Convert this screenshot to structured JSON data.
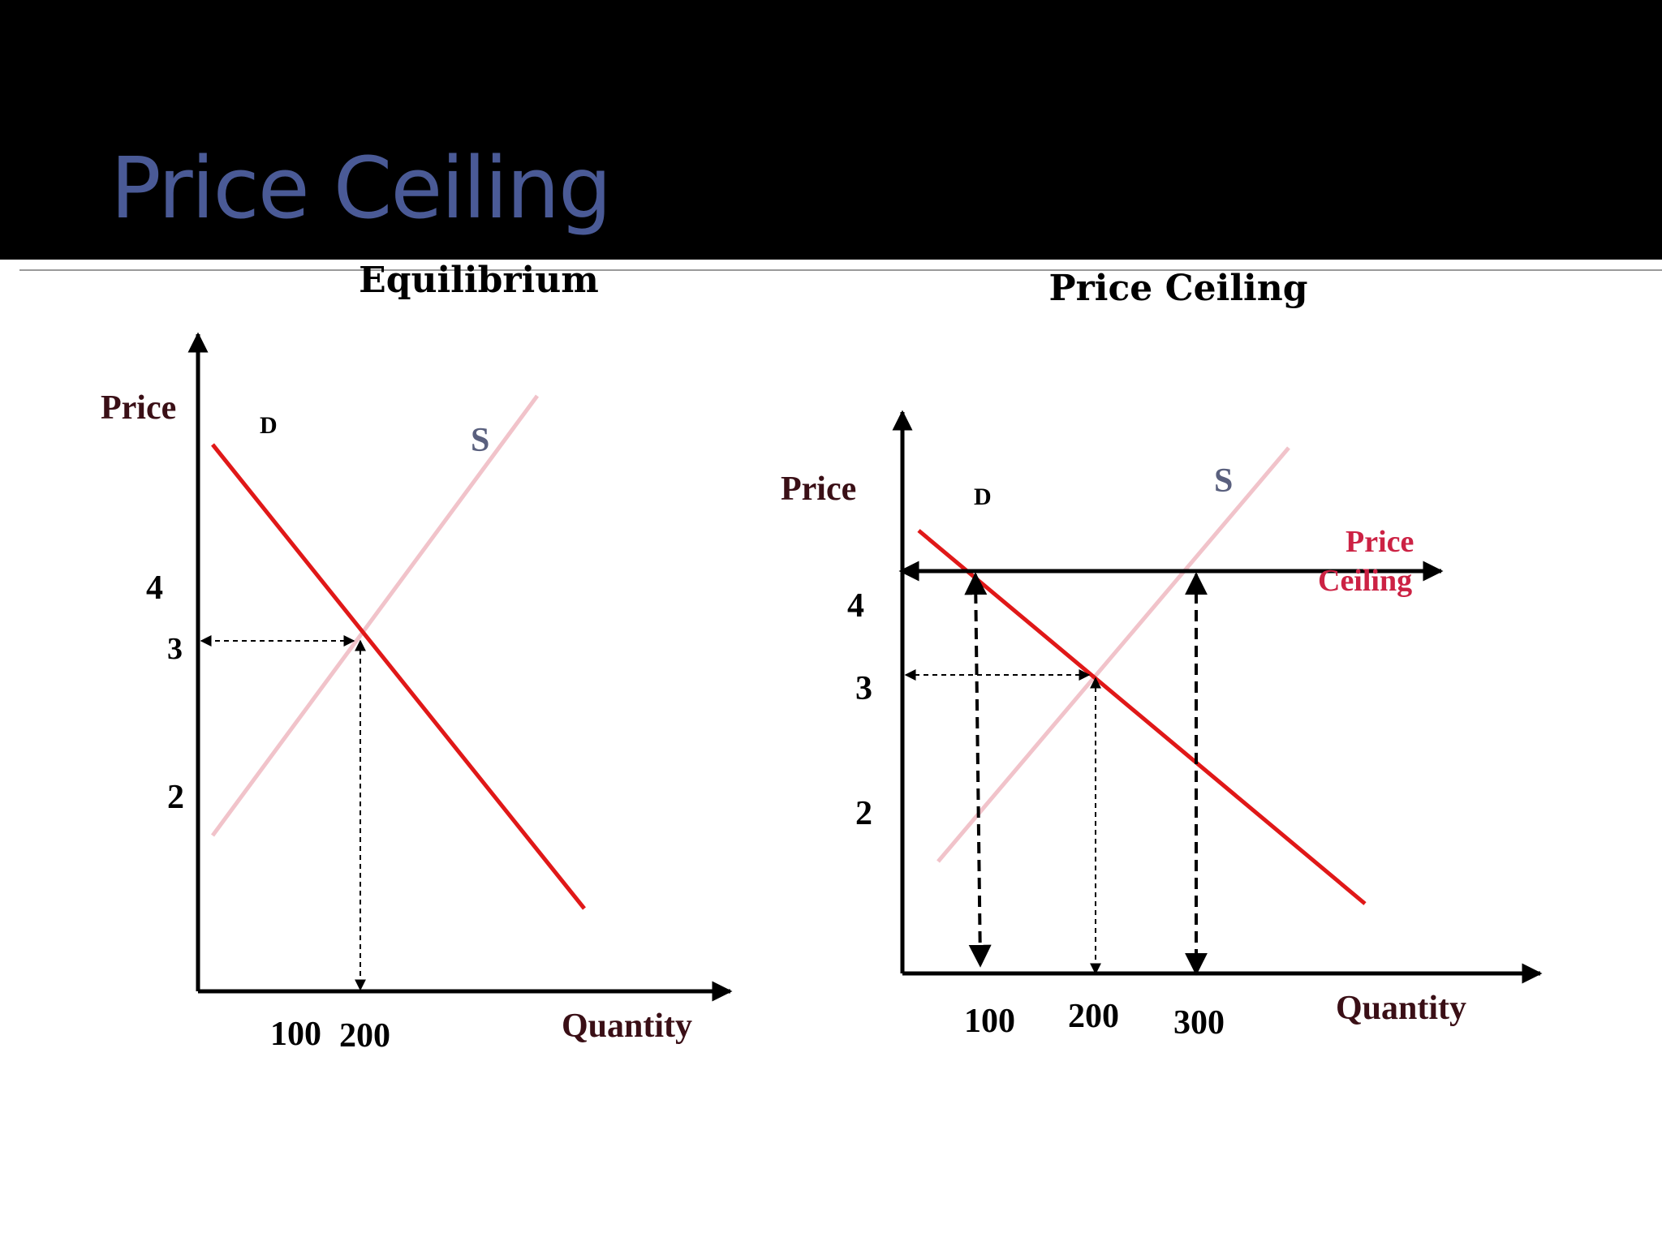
{
  "slide": {
    "title": "Price Ceiling"
  },
  "colors": {
    "demand": "#e01818",
    "supply": "#f1c3ca",
    "title": "#4a5a96",
    "axis_label": "#3a0f16",
    "ceiling_label": "#cc2244",
    "supply_label": "#5a607e"
  },
  "chart_data": [
    {
      "type": "line",
      "title": "Equilibrium",
      "xlabel": "Quantity",
      "ylabel": "Price",
      "xlim": [
        0,
        500
      ],
      "ylim": [
        0,
        5.5
      ],
      "x_ticks": [
        "100",
        "200"
      ],
      "y_ticks": [
        "2",
        "3",
        "4"
      ],
      "series": [
        {
          "name": "D",
          "x": [
            10,
            330
          ],
          "y": [
            4.9,
            0.8
          ]
        },
        {
          "name": "S",
          "x": [
            10,
            200,
            280
          ],
          "y": [
            1.5,
            3.1,
            5.8
          ]
        }
      ],
      "equilibrium": {
        "quantity": 200,
        "price": 3
      },
      "grid": false
    },
    {
      "type": "line",
      "title": "Price Ceiling",
      "xlabel": "Quantity",
      "ylabel": "Price",
      "xlim": [
        0,
        500
      ],
      "ylim": [
        0,
        5.5
      ],
      "x_ticks": [
        "100",
        "200",
        "300"
      ],
      "y_ticks": [
        "2",
        "3",
        "4"
      ],
      "series": [
        {
          "name": "D",
          "x": [
            10,
            380
          ],
          "y": [
            4.4,
            0.6
          ]
        },
        {
          "name": "S",
          "x": [
            30,
            310
          ],
          "y": [
            1.0,
            5.1
          ]
        }
      ],
      "annotations": [
        {
          "text": "Price Ceiling",
          "price": 3.85,
          "quantity_demanded": 300,
          "quantity_supplied": 100
        }
      ],
      "equilibrium": {
        "quantity": 200,
        "price": 3
      },
      "grid": false
    }
  ]
}
